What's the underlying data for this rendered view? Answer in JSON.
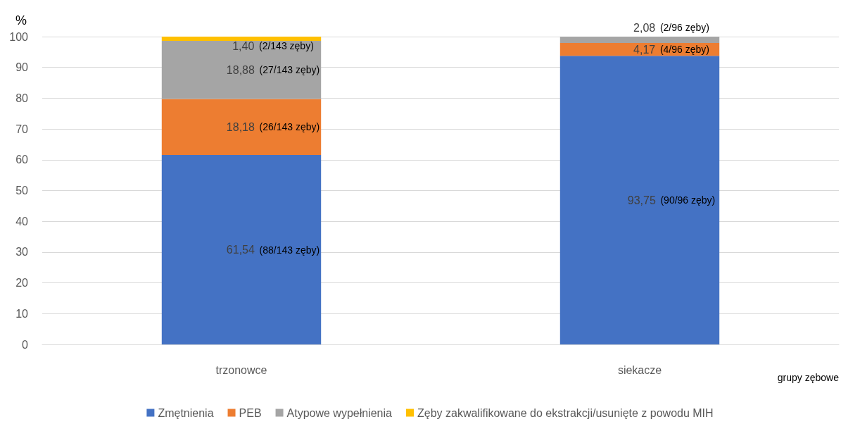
{
  "chart_data": {
    "type": "bar",
    "stacked": true,
    "ylabel": "%",
    "xlabel": "grupy zębowe",
    "categories": [
      "trzonowce",
      "siekacze"
    ],
    "series": [
      {
        "name": "Zmętnienia",
        "color": "#4472c4",
        "values": [
          61.54,
          93.75
        ],
        "value_labels": [
          "61,54",
          "93,75"
        ]
      },
      {
        "name": "PEB",
        "color": "#ed7d31",
        "values": [
          18.18,
          4.17
        ],
        "value_labels": [
          "18,18",
          "4,17"
        ]
      },
      {
        "name": "Atypowe wypełnienia",
        "color": "#a5a5a5",
        "values": [
          18.88,
          2.08
        ],
        "value_labels": [
          "18,88",
          "2,08"
        ]
      },
      {
        "name": "Zęby zakwalifikowane do ekstrakcji/usunięte z powodu MIH",
        "color": "#ffc000",
        "values": [
          1.4,
          null
        ],
        "value_labels": [
          "1,40",
          null
        ]
      }
    ],
    "annotations": [
      "(88/143 zęby)",
      "(26/143 zęby)",
      "(27/143 zęby)",
      "(2/143 zęby)",
      "(90/96 zęby)",
      "(4/96 zęby)",
      "(2/96 zęby)"
    ],
    "ylim": [
      0,
      100
    ],
    "yticks": [
      0,
      10,
      20,
      30,
      40,
      50,
      60,
      70,
      80,
      90,
      100
    ],
    "grid": "y",
    "legend": "bottom"
  }
}
